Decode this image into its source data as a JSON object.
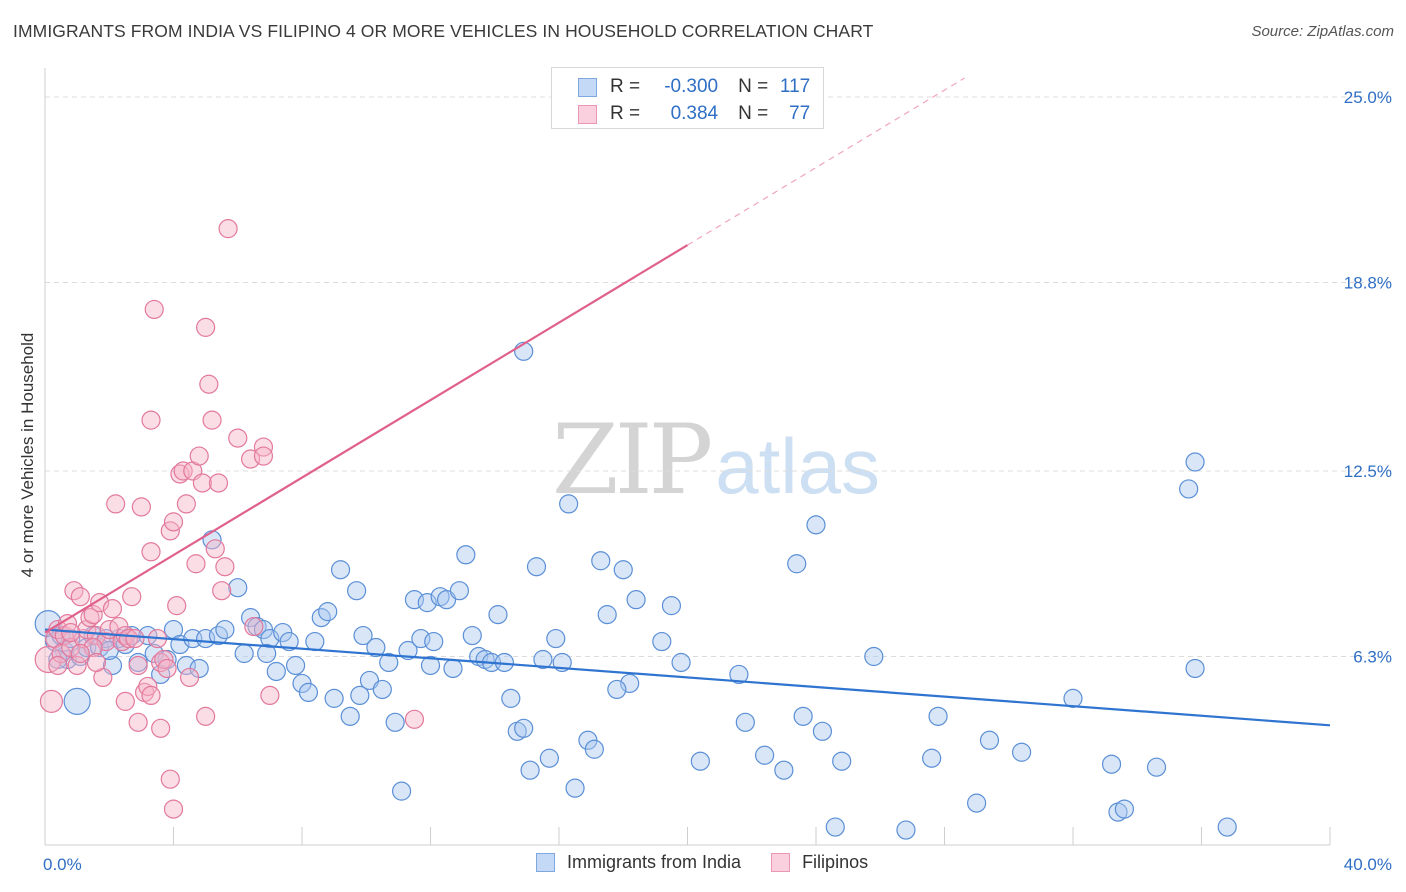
{
  "header": {
    "title": "IMMIGRANTS FROM INDIA VS FILIPINO 4 OR MORE VEHICLES IN HOUSEHOLD CORRELATION CHART",
    "source": "Source: ZipAtlas.com"
  },
  "watermark": {
    "zip": "ZIP",
    "atlas": "atlas"
  },
  "legend": {
    "rows": [
      {
        "r_label": "R =",
        "r_value": "-0.300",
        "n_label": "N =",
        "n_value": "117",
        "color": "#a9c8f0"
      },
      {
        "r_label": "R =",
        "r_value": "0.384",
        "n_label": "N =",
        "n_value": "77",
        "color": "#f6b3c8"
      }
    ]
  },
  "bottom_legend": {
    "india": "Immigrants from India",
    "filipinos": "Filipinos"
  },
  "chart_data": {
    "type": "scatter",
    "title": "IMMIGRANTS FROM INDIA VS FILIPINO 4 OR MORE VEHICLES IN HOUSEHOLD CORRELATION CHART",
    "xlabel": "",
    "ylabel": "4 or more Vehicles in Household",
    "xlim": [
      0,
      40
    ],
    "ylim": [
      0,
      26
    ],
    "x_tick_labels": [
      "0.0%",
      "40.0%"
    ],
    "y_ticks": [
      6.3,
      12.5,
      18.8,
      25.0
    ],
    "y_tick_labels": [
      "6.3%",
      "12.5%",
      "18.8%",
      "25.0%"
    ],
    "grid": true,
    "legend_position": "top-center",
    "series": [
      {
        "name": "Immigrants from India",
        "color": "#a9c8f0",
        "stroke": "#5b8fd6",
        "line_color": "#2f74d0",
        "r": -0.3,
        "n": 117,
        "trend": {
          "x": [
            0,
            40
          ],
          "y": [
            7.2,
            4.0
          ],
          "dashed_from": null
        },
        "points": [
          [
            0.1,
            7.4
          ],
          [
            0.3,
            6.8
          ],
          [
            0.5,
            7.0
          ],
          [
            0.6,
            6.5
          ],
          [
            0.7,
            6.2
          ],
          [
            0.8,
            6.9
          ],
          [
            1.0,
            4.8
          ],
          [
            1.1,
            6.3
          ],
          [
            1.3,
            6.6
          ],
          [
            1.5,
            7.0
          ],
          [
            1.7,
            6.6
          ],
          [
            1.9,
            6.9
          ],
          [
            2.1,
            6.0
          ],
          [
            2.3,
            6.9
          ],
          [
            2.5,
            6.7
          ],
          [
            2.7,
            7.0
          ],
          [
            2.9,
            6.1
          ],
          [
            3.2,
            7.0
          ],
          [
            3.4,
            6.4
          ],
          [
            3.6,
            5.7
          ],
          [
            3.8,
            6.2
          ],
          [
            4.0,
            7.2
          ],
          [
            4.2,
            6.7
          ],
          [
            4.4,
            6.0
          ],
          [
            4.6,
            6.9
          ],
          [
            4.8,
            5.9
          ],
          [
            5.0,
            6.9
          ],
          [
            5.2,
            10.2
          ],
          [
            5.4,
            7.0
          ],
          [
            5.6,
            7.2
          ],
          [
            6.0,
            8.6
          ],
          [
            6.2,
            6.4
          ],
          [
            6.4,
            7.6
          ],
          [
            6.6,
            7.3
          ],
          [
            6.8,
            7.2
          ],
          [
            7.0,
            6.9
          ],
          [
            7.2,
            5.8
          ],
          [
            7.4,
            7.1
          ],
          [
            7.6,
            6.8
          ],
          [
            7.8,
            6.0
          ],
          [
            8.0,
            5.4
          ],
          [
            8.2,
            5.1
          ],
          [
            8.4,
            6.8
          ],
          [
            8.6,
            7.6
          ],
          [
            8.8,
            7.8
          ],
          [
            9.0,
            4.9
          ],
          [
            9.2,
            9.2
          ],
          [
            9.5,
            4.3
          ],
          [
            9.7,
            8.5
          ],
          [
            9.9,
            7.0
          ],
          [
            10.1,
            5.5
          ],
          [
            10.3,
            6.6
          ],
          [
            10.5,
            5.2
          ],
          [
            10.7,
            6.1
          ],
          [
            10.9,
            4.1
          ],
          [
            11.1,
            1.8
          ],
          [
            11.3,
            6.5
          ],
          [
            11.5,
            8.2
          ],
          [
            11.7,
            6.9
          ],
          [
            11.9,
            8.1
          ],
          [
            12.1,
            6.8
          ],
          [
            12.3,
            8.3
          ],
          [
            12.5,
            8.2
          ],
          [
            12.7,
            5.9
          ],
          [
            12.9,
            8.5
          ],
          [
            13.1,
            9.7
          ],
          [
            13.3,
            7.0
          ],
          [
            13.5,
            6.3
          ],
          [
            13.7,
            6.2
          ],
          [
            13.9,
            6.1
          ],
          [
            14.1,
            7.7
          ],
          [
            14.3,
            6.1
          ],
          [
            14.5,
            4.9
          ],
          [
            14.7,
            3.8
          ],
          [
            14.9,
            3.9
          ],
          [
            15.1,
            2.5
          ],
          [
            15.3,
            9.3
          ],
          [
            15.5,
            6.2
          ],
          [
            15.7,
            2.9
          ],
          [
            15.9,
            6.9
          ],
          [
            16.1,
            6.1
          ],
          [
            16.3,
            11.4
          ],
          [
            16.5,
            1.9
          ],
          [
            16.9,
            3.5
          ],
          [
            17.1,
            3.2
          ],
          [
            17.3,
            9.5
          ],
          [
            17.5,
            7.7
          ],
          [
            18.0,
            9.2
          ],
          [
            18.2,
            5.4
          ],
          [
            18.4,
            8.2
          ],
          [
            19.2,
            6.8
          ],
          [
            19.5,
            8.0
          ],
          [
            19.8,
            6.1
          ],
          [
            20.4,
            2.8
          ],
          [
            21.6,
            5.7
          ],
          [
            21.8,
            4.1
          ],
          [
            22.4,
            3.0
          ],
          [
            23.0,
            2.5
          ],
          [
            23.4,
            9.4
          ],
          [
            23.6,
            4.3
          ],
          [
            24.2,
            3.8
          ],
          [
            24.6,
            0.6
          ],
          [
            24.8,
            2.8
          ],
          [
            24.0,
            10.7
          ],
          [
            25.8,
            6.3
          ],
          [
            26.8,
            0.5
          ],
          [
            27.6,
            2.9
          ],
          [
            27.8,
            4.3
          ],
          [
            29.0,
            1.4
          ],
          [
            29.4,
            3.5
          ],
          [
            30.4,
            3.1
          ],
          [
            32.0,
            4.9
          ],
          [
            33.2,
            2.7
          ],
          [
            33.4,
            1.1
          ],
          [
            33.6,
            1.2
          ],
          [
            34.6,
            2.6
          ],
          [
            35.6,
            11.9
          ],
          [
            35.8,
            12.8
          ],
          [
            35.8,
            5.9
          ],
          [
            36.8,
            0.6
          ],
          [
            14.9,
            16.5
          ],
          [
            0.4,
            6.2
          ],
          [
            2.0,
            6.5
          ],
          [
            6.9,
            6.4
          ],
          [
            9.8,
            5.0
          ],
          [
            12.0,
            6.0
          ],
          [
            17.8,
            5.2
          ]
        ]
      },
      {
        "name": "Filipinos",
        "color": "#f6b3c8",
        "stroke": "#e2799c",
        "line_color": "#e0608c",
        "r": 0.384,
        "n": 77,
        "trend": {
          "x": [
            0,
            40
          ],
          "y": [
            7.1,
            33.0
          ],
          "dashed_from": 20
        },
        "points": [
          [
            0.1,
            6.2
          ],
          [
            0.2,
            4.8
          ],
          [
            0.3,
            6.9
          ],
          [
            0.4,
            7.2
          ],
          [
            0.5,
            6.4
          ],
          [
            0.6,
            7.0
          ],
          [
            0.7,
            7.4
          ],
          [
            0.8,
            6.6
          ],
          [
            0.9,
            8.5
          ],
          [
            1.0,
            6.0
          ],
          [
            1.1,
            8.3
          ],
          [
            1.2,
            6.9
          ],
          [
            1.3,
            7.2
          ],
          [
            1.4,
            7.6
          ],
          [
            1.5,
            7.7
          ],
          [
            1.6,
            7.0
          ],
          [
            1.7,
            8.1
          ],
          [
            1.8,
            5.6
          ],
          [
            1.9,
            6.8
          ],
          [
            2.0,
            7.2
          ],
          [
            2.1,
            7.9
          ],
          [
            2.2,
            11.4
          ],
          [
            2.3,
            7.3
          ],
          [
            2.4,
            6.8
          ],
          [
            2.5,
            7.0
          ],
          [
            2.6,
            6.9
          ],
          [
            2.7,
            8.3
          ],
          [
            2.8,
            6.9
          ],
          [
            2.9,
            4.1
          ],
          [
            3.0,
            11.3
          ],
          [
            3.1,
            5.1
          ],
          [
            3.2,
            5.3
          ],
          [
            3.3,
            14.2
          ],
          [
            3.4,
            17.9
          ],
          [
            3.5,
            6.9
          ],
          [
            3.6,
            6.1
          ],
          [
            3.7,
            6.2
          ],
          [
            3.8,
            5.9
          ],
          [
            3.9,
            10.5
          ],
          [
            4.0,
            10.8
          ],
          [
            4.1,
            8.0
          ],
          [
            4.2,
            12.4
          ],
          [
            4.3,
            12.5
          ],
          [
            4.4,
            11.4
          ],
          [
            4.5,
            5.6
          ],
          [
            4.6,
            12.5
          ],
          [
            4.7,
            9.4
          ],
          [
            4.8,
            13.0
          ],
          [
            4.9,
            12.1
          ],
          [
            5.0,
            17.3
          ],
          [
            5.1,
            15.4
          ],
          [
            5.2,
            14.2
          ],
          [
            5.3,
            9.9
          ],
          [
            5.4,
            12.1
          ],
          [
            5.5,
            8.5
          ],
          [
            5.6,
            9.3
          ],
          [
            5.7,
            20.6
          ],
          [
            6.0,
            13.6
          ],
          [
            6.4,
            12.9
          ],
          [
            6.8,
            13.3
          ],
          [
            6.8,
            13.0
          ],
          [
            3.3,
            9.8
          ],
          [
            3.9,
            2.2
          ],
          [
            4.0,
            1.2
          ],
          [
            2.9,
            6.0
          ],
          [
            3.6,
            3.9
          ],
          [
            1.5,
            6.6
          ],
          [
            2.5,
            4.8
          ],
          [
            5.0,
            4.3
          ],
          [
            7.0,
            5.0
          ],
          [
            11.5,
            4.2
          ],
          [
            0.4,
            6.0
          ],
          [
            0.8,
            7.1
          ],
          [
            1.1,
            6.4
          ],
          [
            1.6,
            6.1
          ],
          [
            3.3,
            5.0
          ],
          [
            6.5,
            7.3
          ]
        ]
      }
    ]
  }
}
